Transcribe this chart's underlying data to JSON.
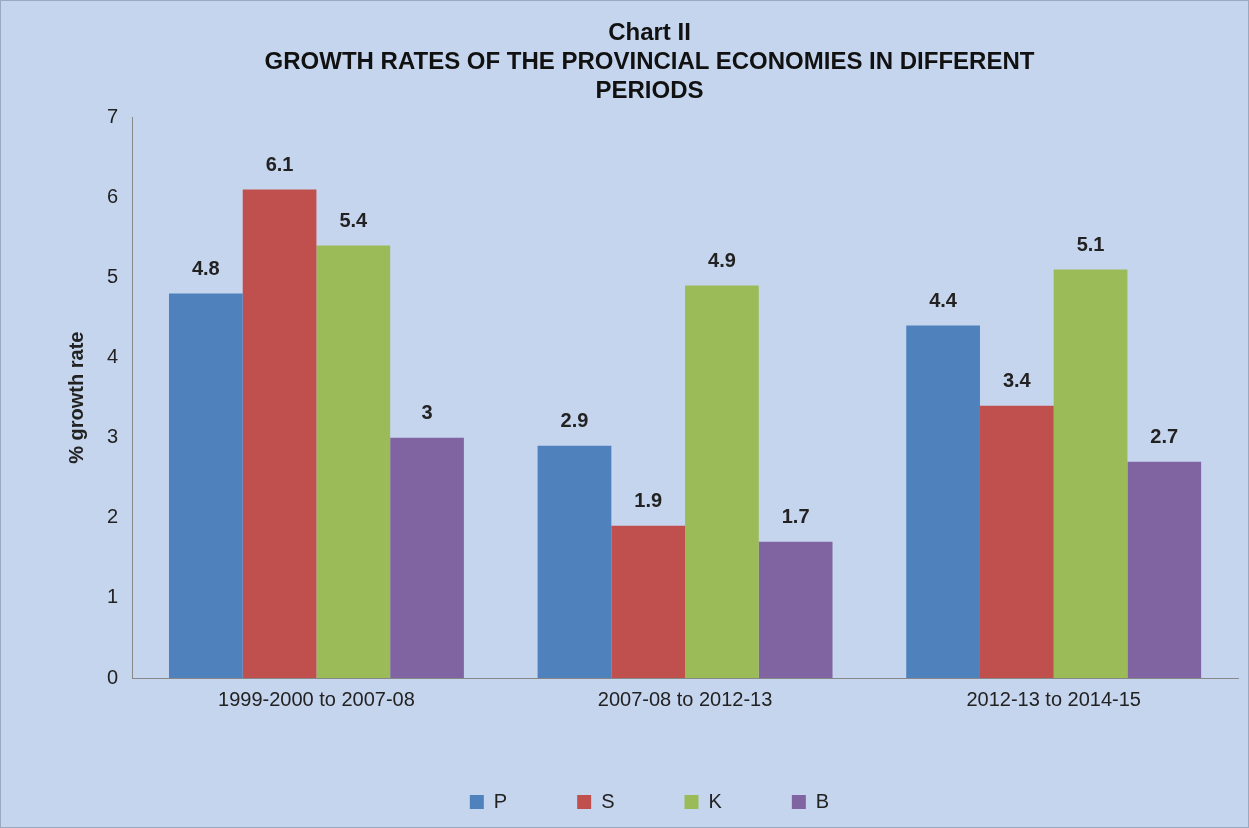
{
  "chart_data": {
    "type": "bar",
    "title": "Chart II",
    "subtitle": "GROWTH RATES OF THE PROVINCIAL ECONOMIES IN DIFFERENT PERIODS",
    "ylabel": "% growth rate",
    "categories": [
      "1999-2000 to 2007-08",
      "2007-08 to 2012-13",
      "2012-13 to 2014-15"
    ],
    "series": [
      {
        "name": "P",
        "color": "#4f81bd",
        "values": [
          4.8,
          2.9,
          4.4
        ]
      },
      {
        "name": "S",
        "color": "#c0504d",
        "values": [
          6.1,
          1.9,
          3.4
        ]
      },
      {
        "name": "K",
        "color": "#9bbb59",
        "values": [
          5.4,
          4.9,
          5.1
        ]
      },
      {
        "name": "B",
        "color": "#8064a2",
        "values": [
          3,
          1.7,
          2.7
        ]
      }
    ],
    "ylim": [
      0,
      7
    ],
    "yticks": [
      0,
      1,
      2,
      3,
      4,
      5,
      6,
      7
    ],
    "grid": false,
    "legend": "bottom",
    "data_labels": true
  }
}
